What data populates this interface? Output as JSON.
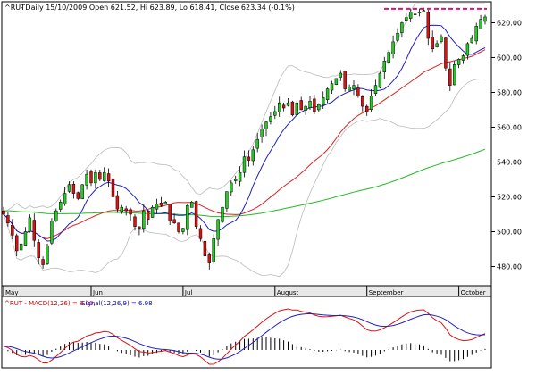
{
  "chart_data": [
    {
      "type": "candlestick",
      "header": {
        "symbol": "^RUT",
        "rest": " - Daily 15/10/2009 Open 621.52, Hi 623.89, Lo 618.41, Close 623.34 (-0.1%)"
      },
      "y_ticks": [
        480,
        500,
        520,
        540,
        560,
        580,
        600,
        620
      ],
      "ylim": [
        470,
        631
      ],
      "x_labels": [
        {
          "label": "May",
          "index": 0
        },
        {
          "label": "Jun",
          "index": 20
        },
        {
          "label": "Jul",
          "index": 41
        },
        {
          "label": "August",
          "index": 62
        },
        {
          "label": "September",
          "index": 83
        },
        {
          "label": "October",
          "index": 104
        }
      ],
      "resistance_level": 628,
      "colors": {
        "up": "#22cc22",
        "down": "#dd1111",
        "ma_short": "#2020c0",
        "ma_mid": "#dd2222",
        "ma_long": "#22bb22",
        "bands": "#bbbbbb",
        "resistance": "#e0106f"
      },
      "closes": [
        510,
        505,
        498,
        489,
        493,
        500,
        508,
        495,
        485,
        481,
        492,
        506,
        512,
        517,
        522,
        527,
        522,
        519,
        527,
        533,
        528,
        534,
        530,
        534,
        529,
        520,
        513,
        514,
        512,
        510,
        503,
        502,
        512,
        507,
        514,
        516,
        515,
        517,
        506,
        505,
        500,
        502,
        515,
        517,
        503,
        496,
        486,
        482,
        496,
        507,
        514,
        523,
        528,
        530,
        534,
        543,
        541,
        547,
        553,
        559,
        563,
        566,
        569,
        574,
        571,
        574,
        567,
        574,
        570,
        572,
        575,
        569,
        573,
        577,
        582,
        585,
        588,
        591,
        582,
        583,
        584,
        578,
        572,
        569,
        578,
        584,
        591,
        598,
        603,
        609,
        614,
        620,
        623,
        626,
        625,
        626,
        627,
        611,
        605,
        608,
        612,
        594,
        584,
        596,
        599,
        601,
        608,
        611,
        618,
        622,
        623.34
      ],
      "macd": {
        "label": "^RUT - MACD(12,26) = 8.00,",
        "signal_label": "Signal(12,26,9) = 6.98"
      }
    }
  ]
}
